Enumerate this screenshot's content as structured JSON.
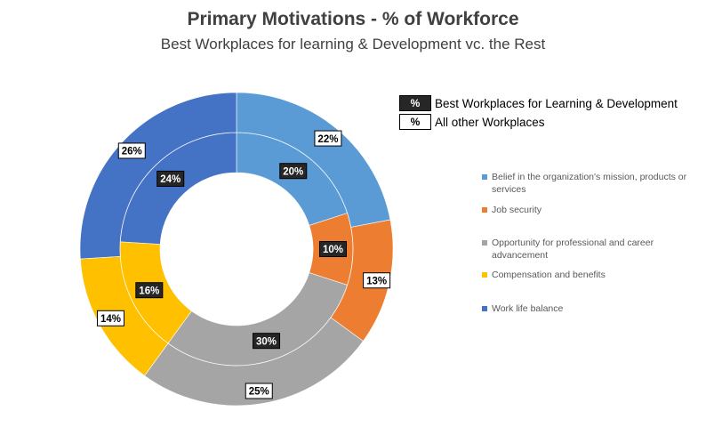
{
  "title": "Primary Motivations - % of Workforce",
  "subtitle": "Best Workplaces for learning & Development vc. the Rest",
  "key": {
    "symbol": "%",
    "inner_label": "Best Workplaces for Learning & Development",
    "outer_label": "All other Workplaces"
  },
  "chart_data": {
    "type": "pie",
    "variant": "doughnut",
    "title": "Primary Motivations - % of Workforce",
    "subtitle": "Best Workplaces for learning & Development vc. the Rest",
    "categories": [
      "Belief in the organization's mission, products or services",
      "Job security",
      "Opportunity for professional and career advancement",
      "Compensation and benefits",
      "Work life balance"
    ],
    "colors": [
      "#5b9bd5",
      "#ed7d31",
      "#a5a5a5",
      "#ffc000",
      "#4472c4"
    ],
    "series": [
      {
        "name": "Best Workplaces for Learning & Development",
        "ring": "inner",
        "values": [
          20,
          10,
          30,
          16,
          24
        ],
        "labels": [
          "20%",
          "10%",
          "30%",
          "16%",
          "24%"
        ]
      },
      {
        "name": "All other Workplaces",
        "ring": "outer",
        "values": [
          22,
          13,
          25,
          14,
          26
        ],
        "labels": [
          "22%",
          "13%",
          "25%",
          "14%",
          "26%"
        ]
      }
    ],
    "legend_position": "right"
  }
}
